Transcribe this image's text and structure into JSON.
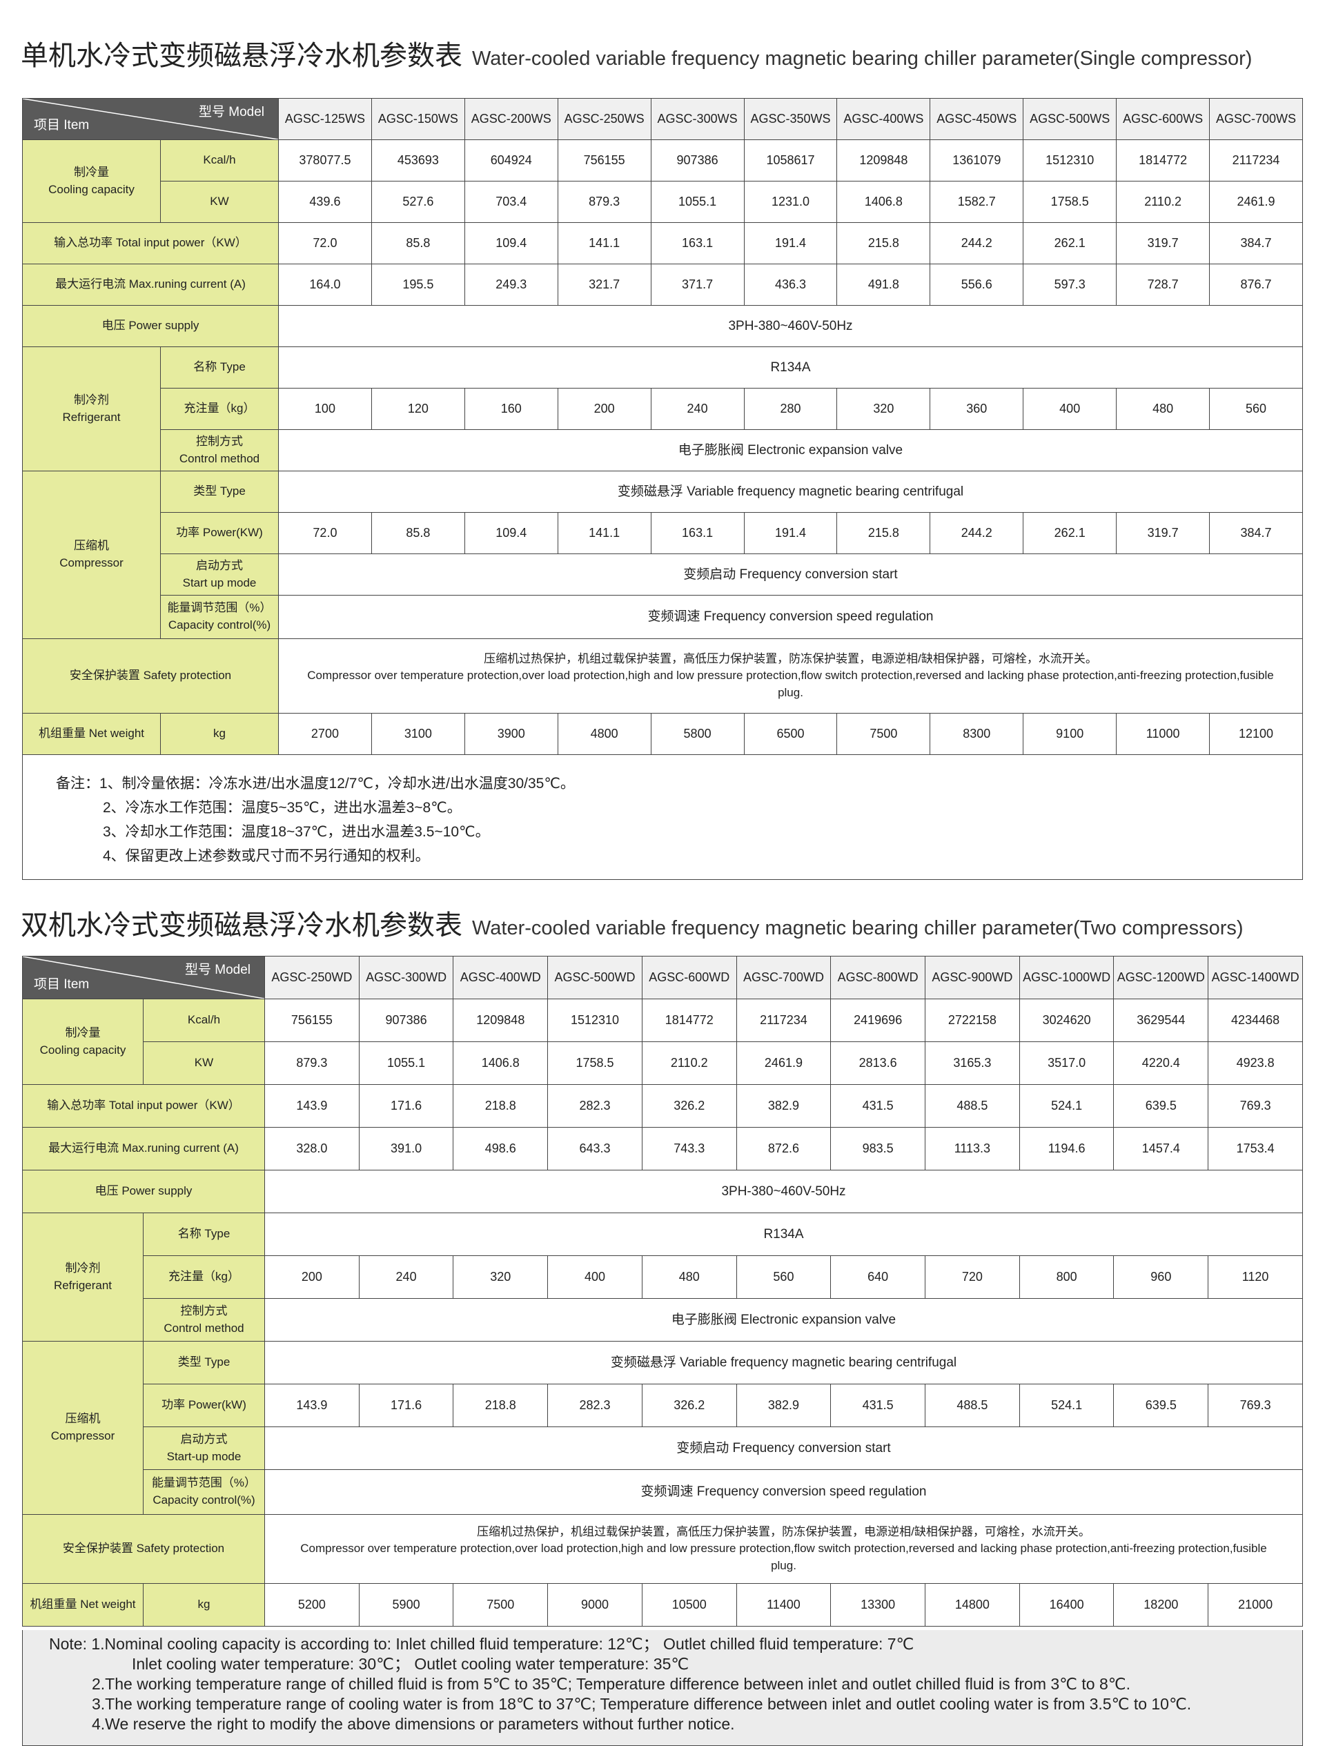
{
  "single": {
    "title_cn": "单机水冷式变频磁悬浮冷水机参数表",
    "title_en": "Water-cooled variable frequency magnetic bearing chiller parameter(Single compressor)",
    "model_label": "型号  Model",
    "item_label": "项目  Item",
    "models": [
      "AGSC-125WS",
      "AGSC-150WS",
      "AGSC-200WS",
      "AGSC-250WS",
      "AGSC-300WS",
      "AGSC-350WS",
      "AGSC-400WS",
      "AGSC-450WS",
      "AGSC-500WS",
      "AGSC-600WS",
      "AGSC-700WS"
    ],
    "cooling": {
      "label_cn": "制冷量",
      "label_en": "Cooling capacity",
      "kcal_label": "Kcal/h",
      "kcal": [
        "378077.5",
        "453693",
        "604924",
        "756155",
        "907386",
        "1058617",
        "1209848",
        "1361079",
        "1512310",
        "1814772",
        "2117234"
      ],
      "kw_label": "KW",
      "kw": [
        "439.6",
        "527.6",
        "703.4",
        "879.3",
        "1055.1",
        "1231.0",
        "1406.8",
        "1582.7",
        "1758.5",
        "2110.2",
        "2461.9"
      ]
    },
    "input_power": {
      "label": "输入总功率  Total input power（KW）",
      "values": [
        "72.0",
        "85.8",
        "109.4",
        "141.1",
        "163.1",
        "191.4",
        "215.8",
        "244.2",
        "262.1",
        "319.7",
        "384.7"
      ]
    },
    "max_current": {
      "label": "最大运行电流  Max.runing current (A)",
      "values": [
        "164.0",
        "195.5",
        "249.3",
        "321.7",
        "371.7",
        "436.3",
        "491.8",
        "556.6",
        "597.3",
        "728.7",
        "876.7"
      ]
    },
    "power_supply": {
      "label": "电压  Power supply",
      "value": "3PH-380~460V-50Hz"
    },
    "refrigerant": {
      "label_cn": "制冷剂",
      "label_en": "Refrigerant",
      "type_label": "名称  Type",
      "type_value": "R134A",
      "charge_label": "充注量（kg）",
      "charge": [
        "100",
        "120",
        "160",
        "200",
        "240",
        "280",
        "320",
        "360",
        "400",
        "480",
        "560"
      ],
      "control_label_cn": "控制方式",
      "control_label_en": "Control method",
      "control_value": "电子膨胀阀  Electronic expansion valve"
    },
    "compressor": {
      "label_cn": "压缩机",
      "label_en": "Compressor",
      "type_label": "类型  Type",
      "type_value": "变频磁悬浮 Variable frequency magnetic bearing centrifugal",
      "power_label": "功率  Power(KW)",
      "power": [
        "72.0",
        "85.8",
        "109.4",
        "141.1",
        "163.1",
        "191.4",
        "215.8",
        "244.2",
        "262.1",
        "319.7",
        "384.7"
      ],
      "start_label_cn": "启动方式",
      "start_label_en": "Start up mode",
      "start_value": "变频启动 Frequency conversion start",
      "capacity_label_cn": "能量调节范围（%）",
      "capacity_label_en": "Capacity control(%)",
      "capacity_value": "变频调速  Frequency conversion speed regulation"
    },
    "safety": {
      "label": "安全保护装置  Safety protection",
      "value_cn": "压缩机过热保护，机组过载保护装置，高低压力保护装置，防冻保护装置，电源逆相/缺相保护器，可熔栓，水流开关。",
      "value_en": "Compressor over temperature protection,over load protection,high and low pressure protection,flow switch protection,reversed and lacking phase protection,anti-freezing protection,fusible plug."
    },
    "weight": {
      "label": "机组重量  Net weight",
      "unit": "kg",
      "values": [
        "2700",
        "3100",
        "3900",
        "4800",
        "5800",
        "6500",
        "7500",
        "8300",
        "9100",
        "11000",
        "12100"
      ]
    },
    "notes": [
      "备注：1、制冷量依据：冷冻水进/出水温度12/7℃，冷却水进/出水温度30/35℃。",
      "2、冷冻水工作范围：温度5~35℃，进出水温差3~8℃。",
      "3、冷却水工作范围：温度18~37℃，进出水温差3.5~10℃。",
      "4、保留更改上述参数或尺寸而不另行通知的权利。"
    ]
  },
  "double": {
    "title_cn": "双机水冷式变频磁悬浮冷水机参数表",
    "title_en": "Water-cooled variable frequency magnetic bearing chiller parameter(Two compressors)",
    "model_label": "型号  Model",
    "item_label": "项目  Item",
    "models": [
      "AGSC-250WD",
      "AGSC-300WD",
      "AGSC-400WD",
      "AGSC-500WD",
      "AGSC-600WD",
      "AGSC-700WD",
      "AGSC-800WD",
      "AGSC-900WD",
      "AGSC-1000WD",
      "AGSC-1200WD",
      "AGSC-1400WD"
    ],
    "cooling": {
      "label_cn": "制冷量",
      "label_en": "Cooling capacity",
      "kcal_label": "Kcal/h",
      "kcal": [
        "756155",
        "907386",
        "1209848",
        "1512310",
        "1814772",
        "2117234",
        "2419696",
        "2722158",
        "3024620",
        "3629544",
        "4234468"
      ],
      "kw_label": "KW",
      "kw": [
        "879.3",
        "1055.1",
        "1406.8",
        "1758.5",
        "2110.2",
        "2461.9",
        "2813.6",
        "3165.3",
        "3517.0",
        "4220.4",
        "4923.8"
      ]
    },
    "input_power": {
      "label": "输入总功率  Total input power（KW）",
      "values": [
        "143.9",
        "171.6",
        "218.8",
        "282.3",
        "326.2",
        "382.9",
        "431.5",
        "488.5",
        "524.1",
        "639.5",
        "769.3"
      ]
    },
    "max_current": {
      "label": "最大运行电流  Max.runing current (A)",
      "values": [
        "328.0",
        "391.0",
        "498.6",
        "643.3",
        "743.3",
        "872.6",
        "983.5",
        "1113.3",
        "1194.6",
        "1457.4",
        "1753.4"
      ]
    },
    "power_supply": {
      "label": "电压  Power supply",
      "value": "3PH-380~460V-50Hz"
    },
    "refrigerant": {
      "label_cn": "制冷剂",
      "label_en": "Refrigerant",
      "type_label": "名称  Type",
      "type_value": "R134A",
      "charge_label": "充注量（kg）",
      "charge": [
        "200",
        "240",
        "320",
        "400",
        "480",
        "560",
        "640",
        "720",
        "800",
        "960",
        "1120"
      ],
      "control_label_cn": "控制方式",
      "control_label_en": "Control method",
      "control_value": "电子膨胀阀  Electronic expansion valve"
    },
    "compressor": {
      "label_cn": "压缩机",
      "label_en": "Compressor",
      "type_label": "类型  Type",
      "type_value": "变频磁悬浮 Variable frequency magnetic bearing centrifugal",
      "power_label": "功率  Power(kW)",
      "power": [
        "143.9",
        "171.6",
        "218.8",
        "282.3",
        "326.2",
        "382.9",
        "431.5",
        "488.5",
        "524.1",
        "639.5",
        "769.3"
      ],
      "start_label_cn": "启动方式",
      "start_label_en": "Start-up mode",
      "start_value": "变频启动 Frequency conversion start",
      "capacity_label_cn": "能量调节范围（%）",
      "capacity_label_en": "Capacity control(%)",
      "capacity_value": "变频调速  Frequency conversion speed regulation"
    },
    "safety": {
      "label": "安全保护装置  Safety protection",
      "value_cn": "压缩机过热保护，机组过载保护装置，高低压力保护装置，防冻保护装置，电源逆相/缺相保护器，可熔栓，水流开关。",
      "value_en": "Compressor over temperature protection,over load protection,high and low pressure protection,flow switch protection,reversed and lacking phase protection,anti-freezing protection,fusible plug."
    },
    "weight": {
      "label": "机组重量  Net weight",
      "unit": "kg",
      "values": [
        "5200",
        "5900",
        "7500",
        "9000",
        "10500",
        "11400",
        "13300",
        "14800",
        "16400",
        "18200",
        "21000"
      ]
    },
    "notes": [
      "Note: 1.Nominal cooling capacity is according to: Inlet chilled fluid temperature: 12℃；  Outlet chilled fluid temperature: 7℃",
      "Inlet cooling water temperature: 30℃；  Outlet cooling water temperature: 35℃",
      "2.The working temperature range of chilled fluid is from 5℃ to 35℃; Temperature difference between inlet and outlet chilled fluid is from 3℃ to 8℃.",
      "3.The working temperature range of cooling water is from 18℃ to 37℃; Temperature difference between inlet and outlet cooling water is from 3.5℃ to 10℃.",
      "4.We reserve the right to modify the above dimensions or parameters without further notice."
    ]
  }
}
